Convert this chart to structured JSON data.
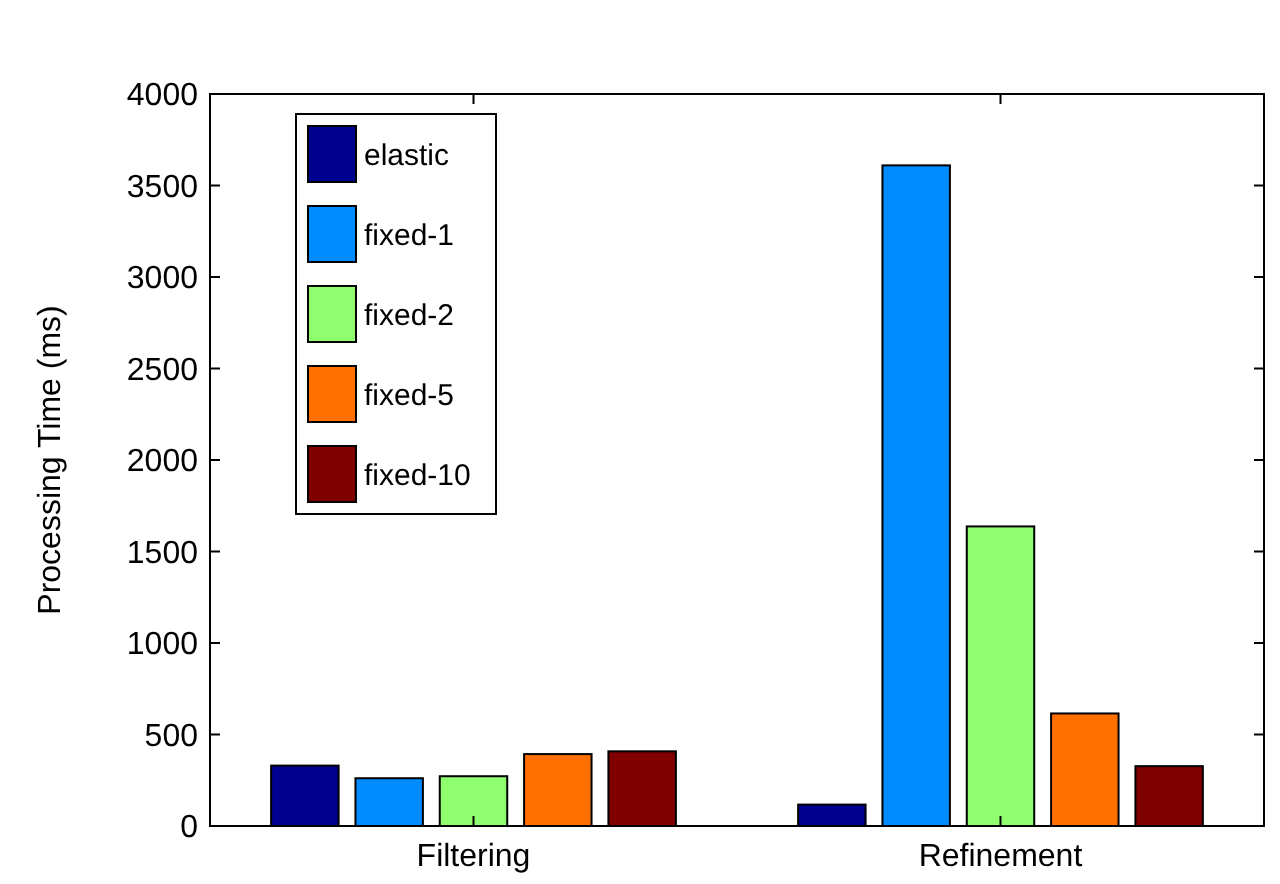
{
  "chart_data": {
    "type": "bar",
    "ylabel": "Processing Time (ms)",
    "categories": [
      "Filtering",
      "Refinement"
    ],
    "series": [
      {
        "name": "elastic",
        "color": "#000090",
        "values": [
          330,
          117
        ]
      },
      {
        "name": "fixed-1",
        "color": "#008cff",
        "values": [
          261,
          3610
        ]
      },
      {
        "name": "fixed-2",
        "color": "#8fff70",
        "values": [
          272,
          1637
        ]
      },
      {
        "name": "fixed-5",
        "color": "#ff7000",
        "values": [
          393,
          615
        ]
      },
      {
        "name": "fixed-10",
        "color": "#800000",
        "values": [
          408,
          327
        ]
      }
    ],
    "ylim": [
      0,
      4000
    ],
    "yticks": [
      0,
      500,
      1000,
      1500,
      2000,
      2500,
      3000,
      3500,
      4000
    ],
    "legend": "top left",
    "grid": false
  }
}
